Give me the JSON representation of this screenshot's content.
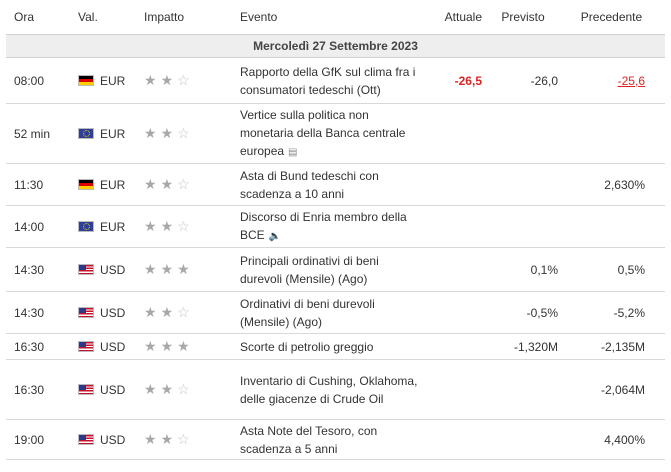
{
  "header": {
    "time": "Ora",
    "currency": "Val.",
    "impact": "Impatto",
    "event": "Evento",
    "actual": "Attuale",
    "forecast": "Previsto",
    "previous": "Precedente"
  },
  "date_label": "Mercoledì 27 Settembre 2023",
  "events": [
    {
      "time": "08:00",
      "flag": "de",
      "currency": "EUR",
      "impact": 2,
      "event": "Rapporto della GfK sul clima fra i consumatori tedeschi (Ott)",
      "icon": "",
      "actual": "-26,5",
      "forecast": "-26,0",
      "previous": "-25,6",
      "actual_color": "#dd2222",
      "previous_color": "#dd2222"
    },
    {
      "time": "52 min",
      "flag": "eu",
      "currency": "EUR",
      "impact": 2,
      "event": "Vertice sulla politica non monetaria della Banca centrale europea",
      "icon": "document-icon",
      "actual": "",
      "forecast": "",
      "previous": ""
    },
    {
      "time": "11:30",
      "flag": "de",
      "currency": "EUR",
      "impact": 2,
      "event": "Asta di Bund tedeschi con scadenza a 10 anni",
      "icon": "",
      "actual": "",
      "forecast": "",
      "previous": "2,630%"
    },
    {
      "time": "14:00",
      "flag": "eu",
      "currency": "EUR",
      "impact": 2,
      "event": "Discorso di Enria membro della BCE",
      "icon": "speaker-icon",
      "actual": "",
      "forecast": "",
      "previous": ""
    },
    {
      "time": "14:30",
      "flag": "us",
      "currency": "USD",
      "impact": 3,
      "event": "Principali ordinativi di beni durevoli (Mensile) (Ago)",
      "icon": "",
      "actual": "",
      "forecast": "0,1%",
      "previous": "0,5%"
    },
    {
      "time": "14:30",
      "flag": "us",
      "currency": "USD",
      "impact": 2,
      "event": "Ordinativi di beni durevoli (Mensile) (Ago)",
      "icon": "",
      "actual": "",
      "forecast": "-0,5%",
      "previous": "-5,2%"
    },
    {
      "time": "16:30",
      "flag": "us",
      "currency": "USD",
      "impact": 3,
      "event": "Scorte di petrolio greggio",
      "icon": "",
      "actual": "",
      "forecast": "-1,320M",
      "previous": "-2,135M"
    },
    {
      "time": "16:30",
      "flag": "us",
      "currency": "USD",
      "impact": 2,
      "event": "Inventario di Cushing, Oklahoma, delle giacenze di Crude Oil",
      "icon": "",
      "actual": "",
      "forecast": "",
      "previous": "-2,064M"
    },
    {
      "time": "19:00",
      "flag": "us",
      "currency": "USD",
      "impact": 2,
      "event": "Asta Note del Tesoro, con scadenza a 5 anni",
      "icon": "",
      "actual": "",
      "forecast": "",
      "previous": "4,400%"
    }
  ]
}
